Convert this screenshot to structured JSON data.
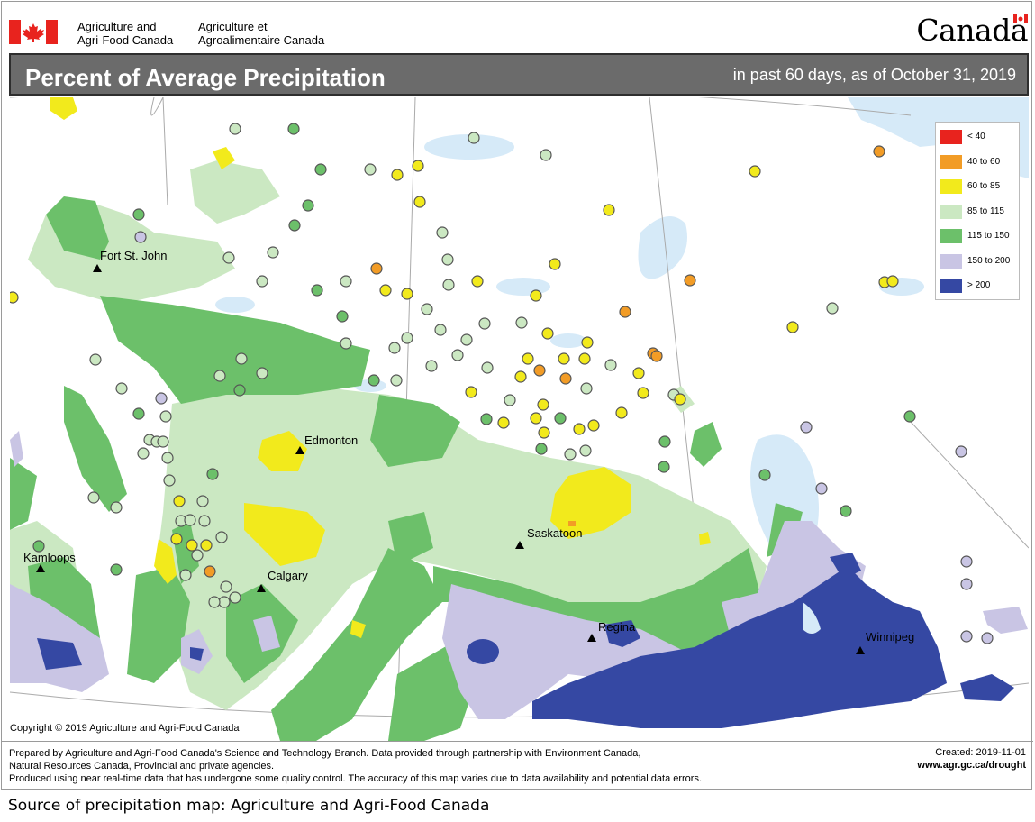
{
  "header": {
    "dept_en_line1": "Agriculture and",
    "dept_en_line2": "Agri-Food Canada",
    "dept_fr_line1": "Agriculture et",
    "dept_fr_line2": "Agroalimentaire Canada",
    "wordmark": "Canada"
  },
  "title": {
    "main": "Percent of Average Precipitation",
    "sub": "in past 60 days, as of October 31, 2019"
  },
  "legend": [
    {
      "label": "< 40",
      "color": "#e8231e"
    },
    {
      "label": "40 to 60",
      "color": "#f29c26"
    },
    {
      "label": "60 to 85",
      "color": "#f2ea1c"
    },
    {
      "label": "85 to 115",
      "color": "#cbe8c2"
    },
    {
      "label": "115 to 150",
      "color": "#6cc06a"
    },
    {
      "label": "150 to 200",
      "color": "#c9c5e4"
    },
    {
      "label": "> 200",
      "color": "#3548a3"
    }
  ],
  "cities": {
    "fort_st_john": "Fort St. John",
    "edmonton": "Edmonton",
    "kamloops": "Kamloops",
    "calgary": "Calgary",
    "saskatoon": "Saskatoon",
    "regina": "Regina",
    "winnipeg": "Winnipeg"
  },
  "copyright": "Copyright © 2019 Agriculture and Agri-Food Canada",
  "footer": {
    "line1": "Prepared by Agriculture and Agri-Food Canada's Science and Technology Branch. Data provided through partnership with Environment Canada,",
    "line2": "Natural Resources Canada, Provincial and private agencies.",
    "line3": "Produced using near real-time data that has undergone some quality control. The accuracy of this map varies due to data availability and potential data errors.",
    "created": "Created: 2019-11-01",
    "url": "www.agr.gc.ca/drought"
  },
  "source_note": "Source of  precipitation map: Agriculture and Agri-Food Canada"
}
